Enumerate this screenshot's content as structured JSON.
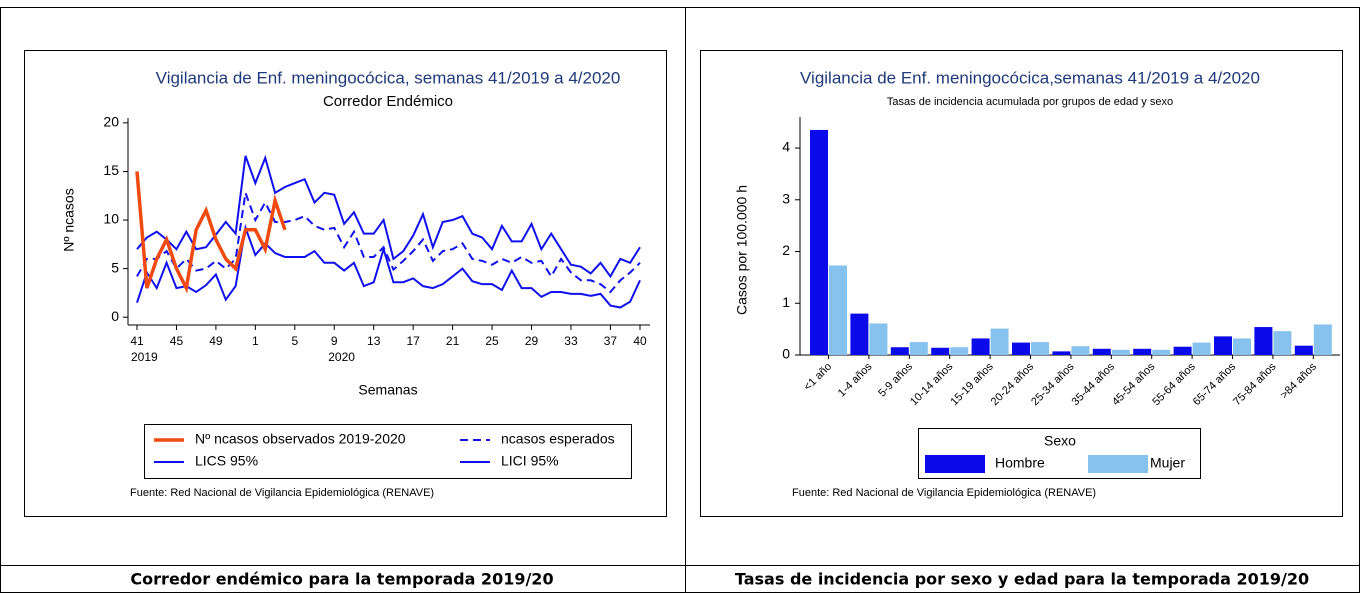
{
  "chart_data": [
    {
      "type": "line",
      "title": "Vigilancia de Enf. meningocócica, semanas 41/2019 a 4/2020",
      "subtitle": "Corredor Endémico",
      "title_color": "#1f3a7a",
      "y_label": "Nº ncasos",
      "x_label": "Semanas",
      "categories": [
        "41",
        null,
        null,
        null,
        "45",
        null,
        null,
        null,
        "49",
        null,
        null,
        null,
        "1",
        null,
        null,
        null,
        "5",
        null,
        null,
        null,
        "9",
        null,
        null,
        null,
        "13",
        null,
        null,
        null,
        "17",
        null,
        null,
        null,
        "21",
        null,
        null,
        null,
        "25",
        null,
        null,
        null,
        "29",
        null,
        null,
        null,
        "33",
        null,
        null,
        null,
        "37",
        null,
        null,
        "40"
      ],
      "year_labels": [
        {
          "category_index": 0,
          "label": "2019"
        },
        {
          "category_index": 20,
          "label": "2020"
        }
      ],
      "ylim": [
        -0.8,
        20.5
      ],
      "yticks": [
        0,
        5,
        10,
        15,
        20
      ],
      "legend": "bottom",
      "series": [
        {
          "name": "Nº ncasos observados 2019-2020",
          "color": "#f04a10",
          "dashed": false,
          "values": [
            15,
            3,
            6,
            8,
            5,
            3,
            9,
            11,
            8,
            6,
            5,
            9,
            9,
            7,
            12,
            9,
            null,
            null,
            null,
            null,
            null,
            null,
            null,
            null,
            null,
            null,
            null,
            null,
            null,
            null,
            null,
            null,
            null,
            null,
            null,
            null,
            null,
            null,
            null,
            null,
            null,
            null,
            null,
            null,
            null,
            null,
            null,
            null,
            null,
            null,
            null,
            null
          ]
        },
        {
          "name": "ncasos esperados",
          "color": "#1010ee",
          "dashed": true,
          "values": [
            4.2,
            6,
            6,
            6.8,
            5,
            6,
            4.8,
            5,
            5.8,
            5,
            6,
            12.8,
            10,
            11.8,
            9.8,
            9.8,
            10,
            10.4,
            9.4,
            9,
            9.2,
            7.2,
            8.8,
            6.2,
            6.2,
            7.2,
            4.9,
            5.8,
            6.8,
            8,
            5.8,
            6.8,
            7,
            7.6,
            6,
            5.8,
            5.4,
            6,
            5.6,
            6.2,
            5.6,
            5.8,
            4.2,
            6,
            4.6,
            3.8,
            3.8,
            3.4,
            2.6,
            3.8,
            4.6,
            5.6
          ]
        },
        {
          "name": "LICS 95%",
          "color": "#1010ee",
          "dashed": false,
          "values": [
            7,
            8.2,
            8.8,
            8,
            7,
            8.8,
            7,
            7.2,
            8.5,
            9.8,
            8.6,
            16.6,
            13.8,
            16.4,
            12.8,
            13.4,
            13.8,
            14.2,
            11.8,
            12.8,
            12.6,
            9.6,
            10.8,
            8.6,
            8.6,
            10,
            6,
            6.8,
            8.4,
            10.6,
            7.2,
            9.8,
            10,
            10.4,
            8.6,
            8.2,
            7,
            9.4,
            7.8,
            7.8,
            9.6,
            7,
            8.6,
            7,
            5.4,
            5.2,
            4.5,
            5.6,
            4.2,
            6,
            5.6,
            7.2
          ]
        },
        {
          "name": "LICI 95%",
          "color": "#1010ee",
          "dashed": false,
          "values": [
            1.5,
            4.6,
            3,
            5.6,
            3,
            3.2,
            2.6,
            3.3,
            4.4,
            1.8,
            3.2,
            9.2,
            6.4,
            7.6,
            6.6,
            6.2,
            6.2,
            6.2,
            6.8,
            5.6,
            5.6,
            4.8,
            5.6,
            3.2,
            3.6,
            7,
            3.6,
            3.6,
            4,
            3.2,
            3,
            3.4,
            4.2,
            5,
            3.7,
            3.4,
            3.4,
            2.8,
            4.8,
            3,
            3,
            2.1,
            2.6,
            2.6,
            2.4,
            2.4,
            2.2,
            2.4,
            1.2,
            1,
            1.6,
            3.8
          ]
        }
      ],
      "source": "Fuente: Red Nacional de Vigilancia Epidemiológica (RENAVE)"
    },
    {
      "type": "bar",
      "title": "Vigilancia de Enf. meningocócica,semanas 41/2019 a 4/2020",
      "subtitle": "Tasas de incidencia acumulada por grupos de edad y sexo",
      "title_color": "#1f3a7a",
      "y_label": "Casos por 100.000 h",
      "categories": [
        "<1 año",
        "1-4 años",
        "5-9 años",
        "10-14 años",
        "15-19 años",
        "20-24 años",
        "25-34 años",
        "35-44 años",
        "45-54 años",
        "55-64 años",
        "65-74 años",
        "75-84 años",
        ">84 años"
      ],
      "ylim": [
        0,
        4.6
      ],
      "yticks": [
        0,
        1,
        2,
        3,
        4
      ],
      "legend": "bottom",
      "legend_title": "Sexo",
      "series": [
        {
          "name": "Hombre",
          "color": "#0a0aea",
          "values": [
            4.35,
            0.8,
            0.15,
            0.14,
            0.32,
            0.24,
            0.07,
            0.12,
            0.12,
            0.16,
            0.36,
            0.54,
            0.18
          ]
        },
        {
          "name": "Mujer",
          "color": "#87c1ee",
          "values": [
            1.73,
            0.61,
            0.25,
            0.15,
            0.51,
            0.25,
            0.17,
            0.1,
            0.1,
            0.24,
            0.32,
            0.46,
            0.59
          ]
        }
      ],
      "source": "Fuente: Red Nacional de Vigilancia Epidemiológica (RENAVE)"
    }
  ],
  "captions": [
    "Corredor endémico para la temporada 2019/20",
    "Tasas de incidencia por sexo y edad para la temporada 2019/20"
  ]
}
